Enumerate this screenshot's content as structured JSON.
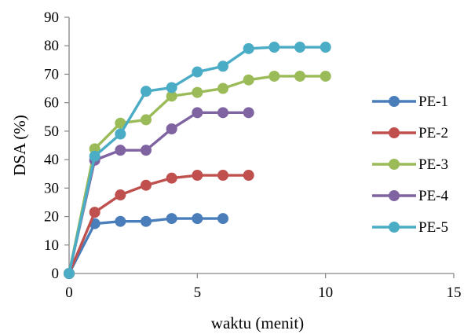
{
  "chart_data": {
    "type": "line",
    "xlabel": "waktu (menit)",
    "ylabel": "DSA (%)",
    "xlim": [
      0,
      15
    ],
    "ylim": [
      0,
      90
    ],
    "xticks": [
      0,
      5,
      10,
      15
    ],
    "yticks": [
      0,
      10,
      20,
      30,
      40,
      50,
      60,
      70,
      80,
      90
    ],
    "grid": false,
    "legend_position": "right",
    "series": [
      {
        "name": "PE-1",
        "color": "#4a7ebb",
        "x": [
          0,
          1,
          2,
          3,
          4,
          5,
          6
        ],
        "y": [
          0,
          17.5,
          18.3,
          18.3,
          19.3,
          19.3,
          19.3
        ]
      },
      {
        "name": "PE-2",
        "color": "#c0504d",
        "x": [
          0,
          1,
          2,
          3,
          4,
          5,
          6,
          7
        ],
        "y": [
          0,
          21.5,
          27.6,
          31,
          33.5,
          34.5,
          34.5,
          34.5
        ]
      },
      {
        "name": "PE-3",
        "color": "#9bbb59",
        "x": [
          0,
          1,
          2,
          3,
          4,
          5,
          6,
          7,
          8,
          9,
          10
        ],
        "y": [
          0,
          43.8,
          52.8,
          54,
          62.3,
          63.6,
          65,
          68,
          69.3,
          69.3,
          69.3
        ]
      },
      {
        "name": "PE-4",
        "color": "#8064a2",
        "x": [
          0,
          1,
          2,
          3,
          4,
          5,
          6,
          7
        ],
        "y": [
          0,
          39.8,
          43.3,
          43.3,
          50.8,
          56.5,
          56.5,
          56.5
        ]
      },
      {
        "name": "PE-5",
        "color": "#4bacc6",
        "x": [
          0,
          1,
          2,
          3,
          4,
          5,
          6,
          7,
          8,
          9,
          10
        ],
        "y": [
          0,
          41.2,
          49,
          64,
          65.3,
          70.8,
          72.8,
          79,
          79.5,
          79.5,
          79.5
        ]
      }
    ]
  }
}
